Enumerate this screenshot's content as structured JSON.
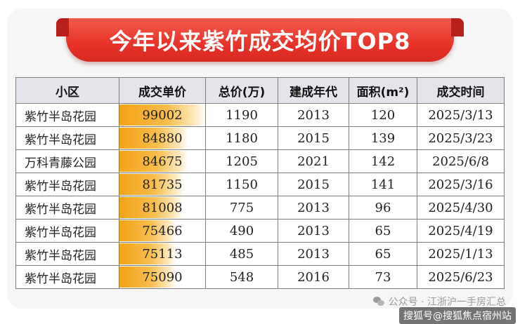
{
  "title": "今年以来紫竹成交均价TOP8",
  "columns": [
    "小区",
    "成交单价",
    "总价(万)",
    "建成年代",
    "面积(m²)",
    "成交时间"
  ],
  "rows": [
    {
      "name": "紫竹半岛花园",
      "unit_price": "99002",
      "total": "1190",
      "year": "2013",
      "area": "120",
      "date": "2025/3/13"
    },
    {
      "name": "紫竹半岛花园",
      "unit_price": "84880",
      "total": "1180",
      "year": "2015",
      "area": "139",
      "date": "2025/3/23"
    },
    {
      "name": "万科青藤公园",
      "unit_price": "84675",
      "total": "1205",
      "year": "2021",
      "area": "142",
      "date": "2025/6/8"
    },
    {
      "name": "紫竹半岛花园",
      "unit_price": "81735",
      "total": "1150",
      "year": "2015",
      "area": "141",
      "date": "2025/3/16"
    },
    {
      "name": "紫竹半岛花园",
      "unit_price": "81008",
      "total": "775",
      "year": "2013",
      "area": "96",
      "date": "2025/4/30"
    },
    {
      "name": "紫竹半岛花园",
      "unit_price": "75466",
      "total": "490",
      "year": "2013",
      "area": "65",
      "date": "2025/4/19"
    },
    {
      "name": "紫竹半岛花园",
      "unit_price": "75113",
      "total": "485",
      "year": "2013",
      "area": "65",
      "date": "2025/1/13"
    },
    {
      "name": "紫竹半岛花园",
      "unit_price": "75090",
      "total": "548",
      "year": "2016",
      "area": "73",
      "date": "2025/6/23"
    }
  ],
  "watermark_1": "公众号 · 江浙沪一手房汇总",
  "watermark_2": "搜狐号@搜狐焦点宿州站",
  "colors": {
    "banner": "#e8332a",
    "bar": "#f4a216",
    "header_bg": "#e4e4ea"
  },
  "icons": [
    "wechat-icon"
  ]
}
